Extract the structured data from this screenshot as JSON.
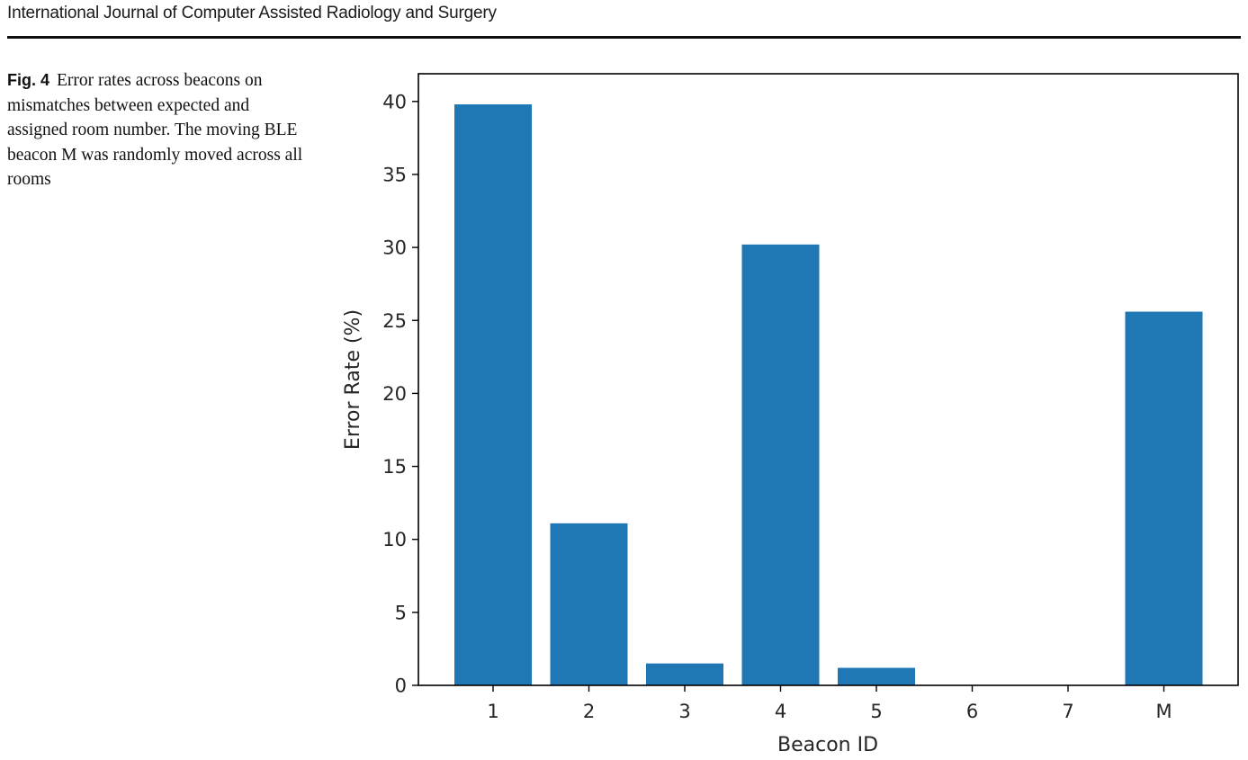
{
  "journal": {
    "running_head": "International Journal of Computer Assisted Radiology and Surgery"
  },
  "figure": {
    "label": "Fig. 4",
    "caption": "Error rates across beacons on mismatches between expected and assigned room number. The moving BLE beacon M was randomly moved across all rooms"
  },
  "chart_data": {
    "type": "bar",
    "categories": [
      "1",
      "2",
      "3",
      "4",
      "5",
      "6",
      "7",
      "M"
    ],
    "values": [
      39.8,
      11.1,
      1.5,
      30.2,
      1.2,
      0,
      0,
      25.6
    ],
    "xlabel": "Beacon ID",
    "ylabel": "Error Rate (%)",
    "ylim": [
      0,
      42
    ],
    "yticks": [
      "0",
      "5",
      "10",
      "15",
      "20",
      "25",
      "30",
      "35",
      "40"
    ],
    "grid": false,
    "bar_color": "#1f77b4"
  }
}
